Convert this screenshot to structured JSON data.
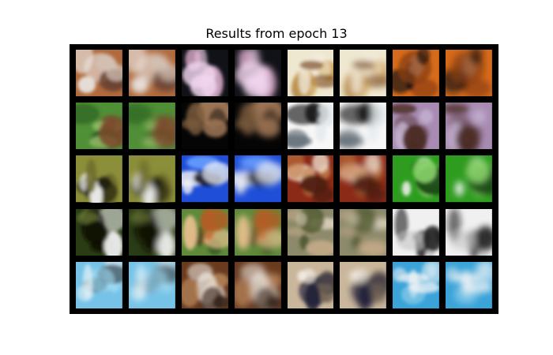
{
  "figure": {
    "title": "Results from epoch 13",
    "rows": 5,
    "pairs_per_row": 4,
    "pairs": [
      {
        "content": "tan-white dog close-up",
        "colors": [
          "#b06a3d",
          "#e9e5e2",
          "#6b4431",
          "#d2c4b8"
        ]
      },
      {
        "content": "dark animal silhouette on pink",
        "colors": [
          "#111118",
          "#f1d6ee",
          "#1e1e2f",
          "#e8b7d8"
        ]
      },
      {
        "content": "saint bernard dog face",
        "colors": [
          "#efe8d0",
          "#7d4f26",
          "#c99a47",
          "#f4efe2"
        ]
      },
      {
        "content": "dog face on orange background",
        "colors": [
          "#d66b1b",
          "#111111",
          "#ecdfd4",
          "#8a3e13"
        ]
      },
      {
        "content": "animal in green grass",
        "colors": [
          "#4f8f36",
          "#7a4a2c",
          "#2a5a21",
          "#9cc36b"
        ]
      },
      {
        "content": "small animal on dark background",
        "colors": [
          "#050505",
          "#7a5a3c",
          "#2a1f18",
          "#a67c5a"
        ]
      },
      {
        "content": "airplane on white background",
        "colors": [
          "#f7f7f7",
          "#161616",
          "#5e6a73",
          "#e0e6ea"
        ]
      },
      {
        "content": "brown dog on lilac background",
        "colors": [
          "#a88bb2",
          "#4a2a23",
          "#7a5a6a",
          "#c6b3d0"
        ]
      },
      {
        "content": "deer by water",
        "colors": [
          "#8b8f3a",
          "#1a1a10",
          "#f0f0f0",
          "#6f6c2a"
        ]
      },
      {
        "content": "ship on blue water",
        "colors": [
          "#1f4fd8",
          "#f2f2f2",
          "#0a0a1a",
          "#6aa0ff"
        ]
      },
      {
        "content": "frog on red background",
        "colors": [
          "#8a2a17",
          "#c27a42",
          "#f0e2d0",
          "#4a1d10"
        ]
      },
      {
        "content": "white dog on green",
        "colors": [
          "#2e9d1f",
          "#f0f0f0",
          "#0e3f0a",
          "#8ad36a"
        ]
      },
      {
        "content": "dark horse outdoors",
        "colors": [
          "#2a3c14",
          "#0b0b07",
          "#6e7c3a",
          "#f4f4f4"
        ]
      },
      {
        "content": "brown puppy on grass",
        "colors": [
          "#5e8a3a",
          "#b85a22",
          "#2c4f20",
          "#e6c08e"
        ]
      },
      {
        "content": "horse on grass field",
        "colors": [
          "#8c8a6b",
          "#c2a987",
          "#4f5a2e",
          "#e4d8c4"
        ]
      },
      {
        "content": "black-white dog on white",
        "colors": [
          "#f0f0f0",
          "#101010",
          "#7a7a7a",
          "#c4c4c4"
        ]
      },
      {
        "content": "airplane in blue sky",
        "colors": [
          "#76c3e7",
          "#e8f3f8",
          "#20303a",
          "#a6dff4"
        ]
      },
      {
        "content": "dog face close-up",
        "colors": [
          "#6a3b1f",
          "#ece7df",
          "#b9875a",
          "#2e1a10"
        ]
      },
      {
        "content": "animal beside dark shape",
        "colors": [
          "#c9b69b",
          "#1e2038",
          "#f4ede4",
          "#7a6a58"
        ]
      },
      {
        "content": "white dog on blue",
        "colors": [
          "#3aa3d8",
          "#f6f6f6",
          "#a1d7ef",
          "#d9e8f0"
        ]
      }
    ]
  }
}
